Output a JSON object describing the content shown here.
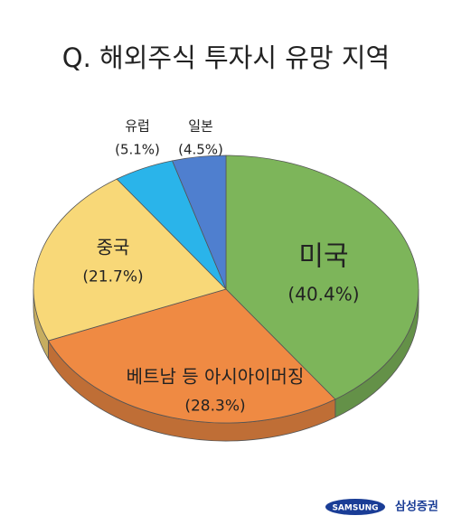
{
  "chart_data": {
    "type": "pie",
    "title": "Q. 해외주식 투자시 유망 지역",
    "categories": [
      "미국",
      "베트남 등 아시아이머징",
      "중국",
      "유럽",
      "일본"
    ],
    "values": [
      40.4,
      28.3,
      21.7,
      5.1,
      4.5
    ],
    "value_labels": [
      "(40.4%)",
      "(28.3%)",
      "(21.7%)",
      "(5.1%)",
      "(4.5%)"
    ],
    "colors": [
      "#7db55a",
      "#ef8a43",
      "#f8d878",
      "#2ab4ea",
      "#4f7fcf"
    ]
  },
  "footer": {
    "logo": "SAMSUNG",
    "brand": "삼성증권"
  }
}
